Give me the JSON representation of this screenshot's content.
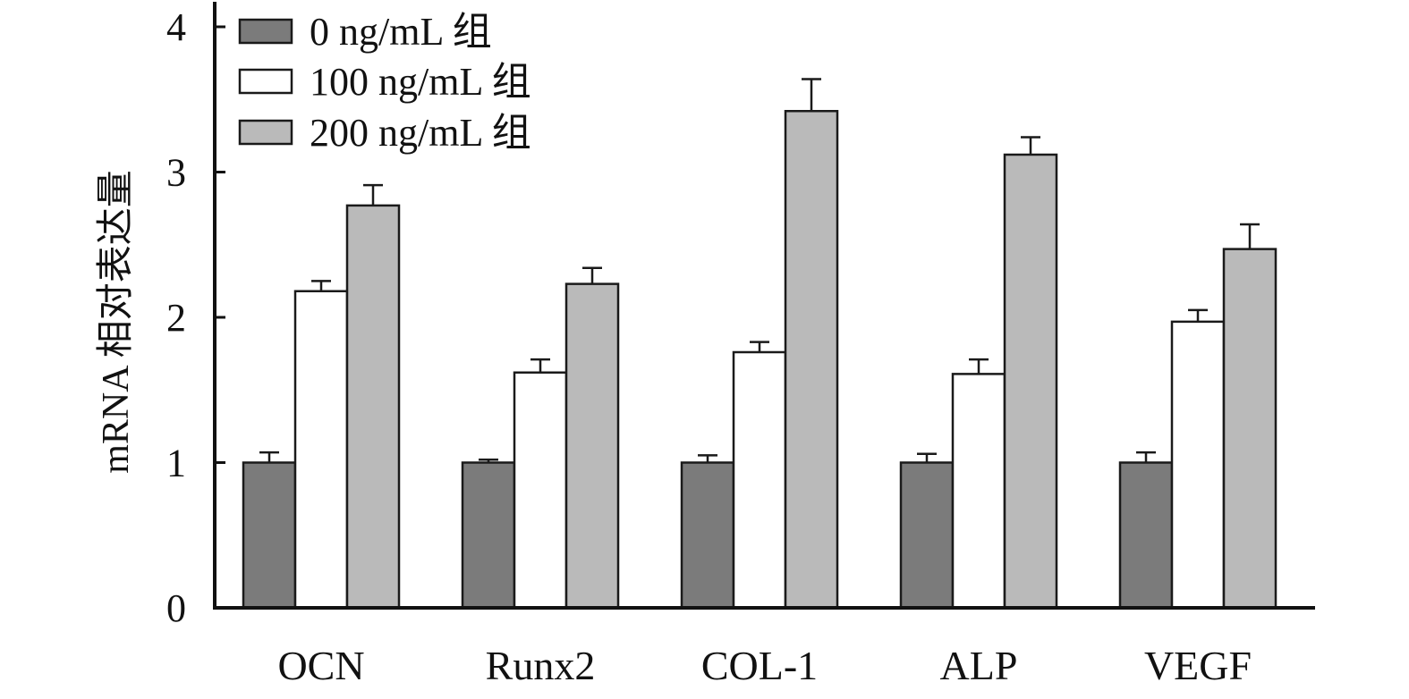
{
  "chart_data": {
    "type": "bar",
    "title": "",
    "xlabel": "",
    "ylabel": "mRNA 相对表达量",
    "ylim": [
      0,
      4
    ],
    "yticks": [
      0,
      1,
      2,
      3,
      4
    ],
    "grid": false,
    "legend_position": "top-left",
    "categories": [
      "OCN",
      "Runx2",
      "COL-1",
      "ALP",
      "VEGF"
    ],
    "series": [
      {
        "name": "0 ng/mL 组",
        "color": "#7b7b7b",
        "values": [
          1.0,
          1.0,
          1.0,
          1.0,
          1.0
        ],
        "errors": [
          0.07,
          0.02,
          0.05,
          0.06,
          0.07
        ]
      },
      {
        "name": "100 ng/mL 组",
        "color": "#ffffff",
        "values": [
          2.18,
          1.62,
          1.76,
          1.61,
          1.97
        ],
        "errors": [
          0.07,
          0.09,
          0.07,
          0.1,
          0.08
        ]
      },
      {
        "name": "200 ng/mL 组",
        "color": "#bababa",
        "values": [
          2.77,
          2.23,
          3.42,
          3.12,
          2.47
        ],
        "errors": [
          0.14,
          0.11,
          0.22,
          0.12,
          0.17
        ]
      }
    ]
  }
}
